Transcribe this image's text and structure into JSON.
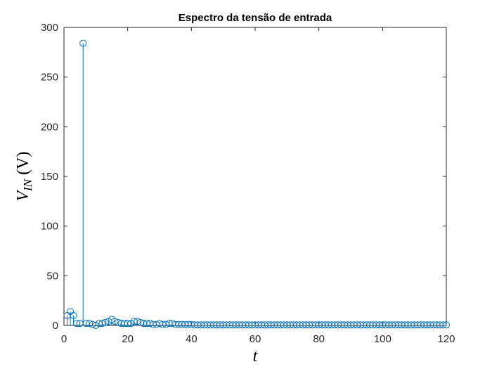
{
  "chart_data": {
    "type": "stem",
    "title": "Espectro da tensão de entrada",
    "xlabel": "t",
    "ylabel": {
      "base": "V",
      "subscript": "IN",
      "unit": "(V)"
    },
    "xlim": [
      0,
      120
    ],
    "ylim": [
      0,
      300
    ],
    "xticks": [
      0,
      20,
      40,
      60,
      80,
      100,
      120
    ],
    "yticks": [
      0,
      50,
      100,
      150,
      200,
      250,
      300
    ],
    "grid": false,
    "color": "#0072BD",
    "x": [
      1,
      2,
      3,
      4,
      5,
      6,
      7,
      8,
      9,
      10,
      11,
      12,
      13,
      14,
      15,
      16,
      17,
      18,
      19,
      20,
      21,
      22,
      23,
      24,
      25,
      26,
      27,
      28,
      29,
      30,
      31,
      32,
      33,
      34,
      35,
      36,
      37,
      38,
      39,
      40,
      41,
      42,
      43,
      44,
      45,
      46,
      47,
      48,
      49,
      50,
      51,
      52,
      53,
      54,
      55,
      56,
      57,
      58,
      59,
      60,
      61,
      62,
      63,
      64,
      65,
      66,
      67,
      68,
      69,
      70,
      71,
      72,
      73,
      74,
      75,
      76,
      77,
      78,
      79,
      80,
      81,
      82,
      83,
      84,
      85,
      86,
      87,
      88,
      89,
      90,
      91,
      92,
      93,
      94,
      95,
      96,
      97,
      98,
      99,
      100,
      101,
      102,
      103,
      104,
      105,
      106,
      107,
      108,
      109,
      110,
      111,
      112,
      113,
      114,
      115,
      116,
      117,
      118,
      119,
      120
    ],
    "values": [
      10,
      14,
      10,
      2,
      2,
      284,
      2,
      2,
      1,
      0,
      2,
      2,
      3,
      4,
      6,
      4,
      3,
      2,
      2,
      2,
      2,
      4,
      4,
      3,
      2,
      2,
      2,
      1,
      1,
      2,
      1,
      1,
      2,
      2,
      1,
      1,
      1,
      1,
      1,
      1,
      0.5,
      0.5,
      0.5,
      0.5,
      0.5,
      0.5,
      0.5,
      0.5,
      0.5,
      0.5,
      0.5,
      0.5,
      0.5,
      0.5,
      0.5,
      0.5,
      0.5,
      0.5,
      0.5,
      0.5,
      0.5,
      0.5,
      0.5,
      0.5,
      0.5,
      0.5,
      0.5,
      0.5,
      0.5,
      0.5,
      0.5,
      0.5,
      0.5,
      0.5,
      0.5,
      0.5,
      0.5,
      0.5,
      0.5,
      0.5,
      0.5,
      0.5,
      0.5,
      0.5,
      0.5,
      0.5,
      0.5,
      0.5,
      0.5,
      0.5,
      0.5,
      0.5,
      0.5,
      0.5,
      0.5,
      0.5,
      0.5,
      0.5,
      0.5,
      0.5,
      0.5,
      0.5,
      0.5,
      0.5,
      0.5,
      0.5,
      0.5,
      0.5,
      0.5,
      0.5,
      0.5,
      0.5,
      0.5,
      0.5,
      0.5,
      0.5,
      0.5,
      0.5,
      0.5,
      0.5
    ]
  }
}
